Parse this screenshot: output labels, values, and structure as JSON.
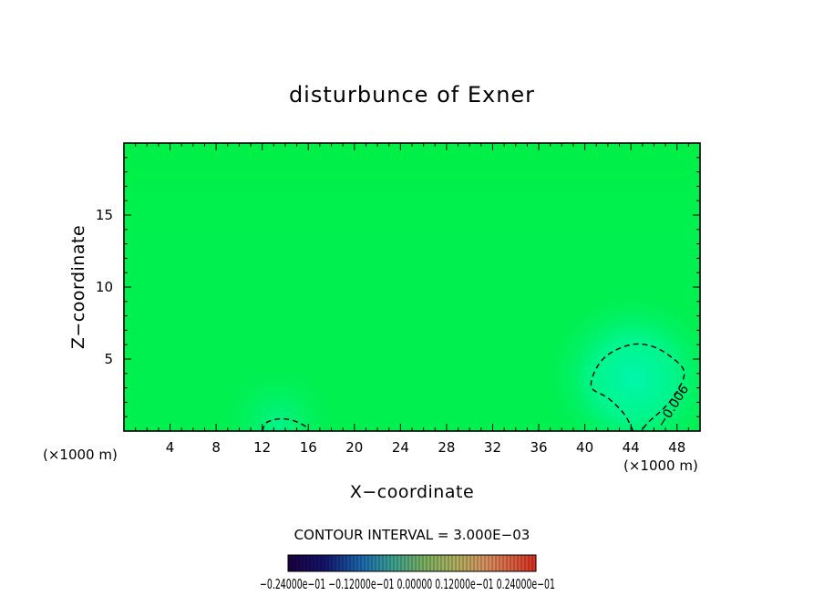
{
  "chart_data": {
    "type": "heatmap",
    "title": "disturbunce of Exner",
    "xlabel": "X−coordinate",
    "ylabel": "Z−coordinate",
    "x_unit_left": "(×1000 m)",
    "x_unit_right": "(×1000 m)",
    "xlim": [
      0,
      50
    ],
    "ylim": [
      0,
      20
    ],
    "x_ticks": [
      4,
      8,
      12,
      16,
      20,
      24,
      28,
      32,
      36,
      40,
      44,
      48
    ],
    "x_tick_labels": [
      "4",
      "8",
      "12",
      "16",
      "20",
      "24",
      "28",
      "32",
      "36",
      "40",
      "44",
      "48"
    ],
    "y_ticks": [
      5,
      10,
      15
    ],
    "y_tick_labels": [
      "5",
      "10",
      "15"
    ],
    "contour_interval_text": "CONTOUR INTERVAL = 3.000E−03",
    "contour_label": "−0.006",
    "colorbar_labels": "−0.24000e−01    −0.12000e−01    0.00000    0.12000e−01    0.24000e−01",
    "colorbar_range": [
      -0.024,
      0.024
    ],
    "colormap": [
      "#2a0080",
      "#0018c8",
      "#0090e0",
      "#00e0a0",
      "#00f040",
      "#80f020",
      "#e0e000",
      "#f08000",
      "#e01010"
    ],
    "field_color": "#00f050",
    "contours": [
      {
        "value": -0.006,
        "style": "dashed",
        "points": [
          [
            44.2,
            0
          ],
          [
            43.4,
            1.2
          ],
          [
            42,
            2.3
          ],
          [
            40.6,
            3
          ],
          [
            40.9,
            4.2
          ],
          [
            42,
            5.3
          ],
          [
            44,
            6
          ],
          [
            45.8,
            5.9
          ],
          [
            47.4,
            5.2
          ],
          [
            48.6,
            4.2
          ],
          [
            48.2,
            3
          ],
          [
            47,
            1.7
          ],
          [
            45.5,
            0.6
          ],
          [
            44.9,
            0
          ]
        ]
      },
      {
        "value": -0.006,
        "style": "dashed",
        "points": [
          [
            12,
            0
          ],
          [
            12.4,
            0.6
          ],
          [
            13.6,
            0.85
          ],
          [
            14.8,
            0.7
          ],
          [
            15.8,
            0.3
          ],
          [
            16,
            0
          ]
        ]
      }
    ]
  }
}
